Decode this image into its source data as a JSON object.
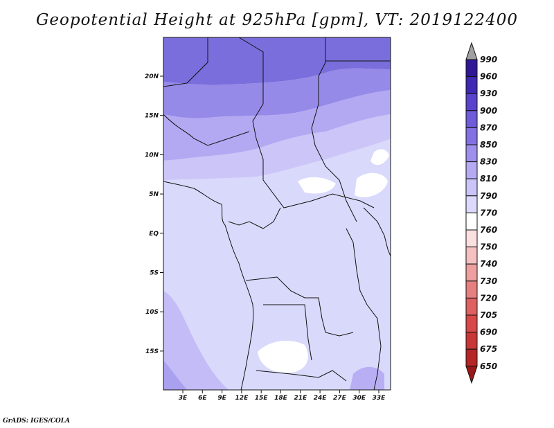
{
  "title": "Geopotential Height at 925hPa [gpm], VT: 2019122400",
  "credit": "GrADS: IGES/COLA",
  "map": {
    "lon_ticks": [
      "3E",
      "6E",
      "9E",
      "12E",
      "15E",
      "18E",
      "21E",
      "24E",
      "27E",
      "30E",
      "33E"
    ],
    "lat_ticks": [
      "20N",
      "15N",
      "10N",
      "5N",
      "EQ",
      "5S",
      "10S",
      "15S"
    ]
  },
  "colorbar": {
    "levels": [
      "990",
      "960",
      "930",
      "900",
      "870",
      "850",
      "830",
      "810",
      "790",
      "770",
      "760",
      "750",
      "740",
      "730",
      "720",
      "705",
      "690",
      "675",
      "650"
    ],
    "colors": [
      "#2f1796",
      "#3f28b3",
      "#5a43cc",
      "#6e5cdb",
      "#8371e3",
      "#9f8fec",
      "#b6abf3",
      "#cbc4f9",
      "#ddd9fc",
      "#ffffff",
      "#fbe0e0",
      "#f4c0c0",
      "#ee9f9f",
      "#e68080",
      "#df6060",
      "#d84848",
      "#c93636",
      "#b62626",
      "#9b1818"
    ],
    "top_arrow_color": "#a0a0a0"
  }
}
